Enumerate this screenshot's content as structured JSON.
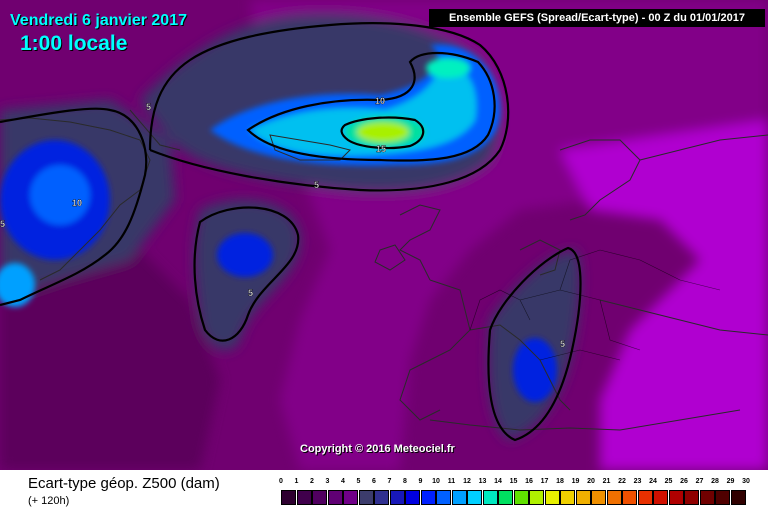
{
  "header": {
    "date": "Vendredi 6 janvier 2017",
    "time": "1:00 locale",
    "model_run": "Ensemble GEFS  (Spread/Ecart-type) - 00 Z du 01/01/2017"
  },
  "map": {
    "contour_labels": [
      "5",
      "10",
      "15",
      "5",
      "10",
      "5",
      "5",
      "5",
      "5"
    ],
    "copyright": "Copyright © 2016 Meteociel.fr",
    "colors": {
      "low": "#3d0060",
      "mid": "#800080",
      "high": "#b000d0",
      "spread5": "#383868",
      "spread10": "#0000f0",
      "spread13": "#00c0f0",
      "spread15": "#a8f000",
      "coast": "#2a2a2a"
    }
  },
  "footer": {
    "title": "Ecart-type géop. Z500 (dam)",
    "lead": "(+ 120h)"
  },
  "legend": {
    "labels": [
      "0",
      "1",
      "2",
      "3",
      "4",
      "5",
      "6",
      "7",
      "8",
      "9",
      "10",
      "11",
      "12",
      "13",
      "14",
      "15",
      "16",
      "17",
      "18",
      "19",
      "20",
      "21",
      "22",
      "23",
      "24",
      "25",
      "26",
      "27",
      "28",
      "29",
      "30"
    ],
    "colors": [
      "#2e0030",
      "#40004c",
      "#500060",
      "#600074",
      "#700088",
      "#3c3c6c",
      "#303090",
      "#1818b8",
      "#0000e0",
      "#0020ff",
      "#0060ff",
      "#00a0ff",
      "#00d0ff",
      "#00e8c0",
      "#00e060",
      "#60e000",
      "#b0f000",
      "#e8f000",
      "#f0d000",
      "#f0b000",
      "#f09000",
      "#f07000",
      "#f05000",
      "#e83000",
      "#d01000",
      "#b00000",
      "#900000",
      "#700000",
      "#500000",
      "#300000"
    ]
  }
}
